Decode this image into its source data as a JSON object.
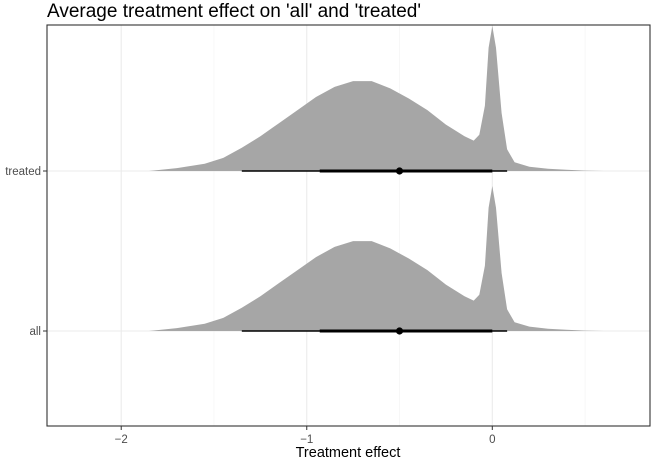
{
  "chart_data": {
    "type": "area",
    "subtype": "halfeye-density",
    "title": "Average treatment effect on 'all' and 'treated'",
    "xlabel": "Treatment effect",
    "ylabel": "",
    "xlim": [
      -2.4,
      0.85
    ],
    "x_ticks": [
      -2,
      -1,
      0
    ],
    "x_tick_labels": [
      "−2",
      "−1",
      "0"
    ],
    "categories": [
      "treated",
      "all"
    ],
    "grid": true,
    "fill_color": "#a6a6a6",
    "interval_color": "#000000",
    "series": [
      {
        "name": "treated",
        "density": {
          "x": [
            -1.85,
            -1.7,
            -1.55,
            -1.45,
            -1.35,
            -1.25,
            -1.15,
            -1.05,
            -0.95,
            -0.85,
            -0.75,
            -0.65,
            -0.55,
            -0.45,
            -0.35,
            -0.25,
            -0.15,
            -0.1,
            -0.07,
            -0.04,
            -0.02,
            0.0,
            0.02,
            0.05,
            0.08,
            0.12,
            0.2,
            0.3,
            0.4,
            0.5,
            0.6
          ],
          "y": [
            0.0,
            0.02,
            0.05,
            0.09,
            0.16,
            0.24,
            0.33,
            0.42,
            0.51,
            0.58,
            0.62,
            0.62,
            0.57,
            0.5,
            0.42,
            0.32,
            0.24,
            0.21,
            0.25,
            0.45,
            0.85,
            1.0,
            0.85,
            0.4,
            0.15,
            0.06,
            0.03,
            0.015,
            0.008,
            0.003,
            0.0
          ]
        },
        "point": -0.5,
        "interval_thick": [
          -0.93,
          0.0
        ],
        "interval_thin": [
          -1.35,
          0.08
        ]
      },
      {
        "name": "all",
        "density": {
          "x": [
            -1.85,
            -1.7,
            -1.55,
            -1.45,
            -1.35,
            -1.25,
            -1.15,
            -1.05,
            -0.95,
            -0.85,
            -0.75,
            -0.65,
            -0.55,
            -0.45,
            -0.35,
            -0.25,
            -0.15,
            -0.1,
            -0.07,
            -0.04,
            -0.02,
            0.0,
            0.02,
            0.05,
            0.08,
            0.12,
            0.2,
            0.3,
            0.4,
            0.5,
            0.6
          ],
          "y": [
            0.0,
            0.02,
            0.05,
            0.09,
            0.16,
            0.24,
            0.33,
            0.42,
            0.51,
            0.58,
            0.62,
            0.62,
            0.57,
            0.5,
            0.42,
            0.32,
            0.24,
            0.21,
            0.25,
            0.45,
            0.85,
            1.0,
            0.85,
            0.4,
            0.15,
            0.06,
            0.03,
            0.015,
            0.008,
            0.003,
            0.0
          ]
        },
        "point": -0.5,
        "interval_thick": [
          -0.93,
          0.0
        ],
        "interval_thin": [
          -1.35,
          0.08
        ]
      }
    ]
  }
}
